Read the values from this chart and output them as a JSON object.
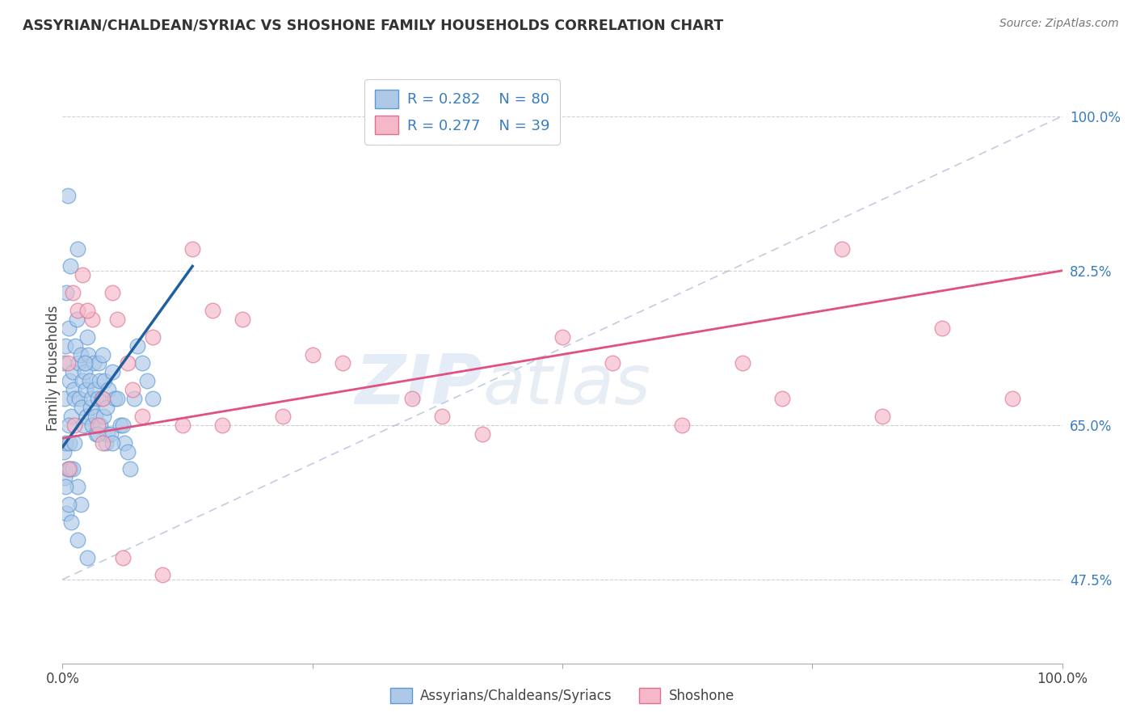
{
  "title": "ASSYRIAN/CHALDEAN/SYRIAC VS SHOSHONE FAMILY HOUSEHOLDS CORRELATION CHART",
  "source": "Source: ZipAtlas.com",
  "ylabel": "Family Households",
  "yticks": [
    0.475,
    0.65,
    0.825,
    1.0
  ],
  "ytick_labels": [
    "47.5%",
    "65.0%",
    "82.5%",
    "100.0%"
  ],
  "xlim": [
    0.0,
    1.0
  ],
  "ylim": [
    0.38,
    1.05
  ],
  "legend_r1": "R = 0.282",
  "legend_n1": "N = 80",
  "legend_r2": "R = 0.277",
  "legend_n2": "N = 39",
  "blue_fill": "#aec9e8",
  "blue_edge": "#5b9bd5",
  "pink_fill": "#f4b8c8",
  "pink_edge": "#e07090",
  "blue_line_color": "#2060a0",
  "pink_line_color": "#e05080",
  "ref_line_color": "#99aacc",
  "blue_scatter_x": [
    0.001,
    0.002,
    0.003,
    0.004,
    0.005,
    0.006,
    0.007,
    0.008,
    0.009,
    0.01,
    0.011,
    0.012,
    0.013,
    0.014,
    0.015,
    0.016,
    0.017,
    0.018,
    0.019,
    0.02,
    0.021,
    0.022,
    0.023,
    0.024,
    0.025,
    0.026,
    0.027,
    0.028,
    0.029,
    0.03,
    0.031,
    0.032,
    0.033,
    0.034,
    0.035,
    0.036,
    0.037,
    0.038,
    0.039,
    0.04,
    0.041,
    0.042,
    0.043,
    0.044,
    0.045,
    0.046,
    0.048,
    0.05,
    0.052,
    0.055,
    0.058,
    0.06,
    0.062,
    0.065,
    0.068,
    0.072,
    0.075,
    0.08,
    0.085,
    0.09,
    0.001,
    0.002,
    0.003,
    0.004,
    0.005,
    0.006,
    0.007,
    0.008,
    0.01,
    0.012,
    0.015,
    0.018,
    0.022,
    0.003,
    0.006,
    0.009,
    0.015,
    0.025,
    0.035,
    0.05
  ],
  "blue_scatter_y": [
    0.72,
    0.68,
    0.74,
    0.8,
    0.91,
    0.76,
    0.7,
    0.83,
    0.66,
    0.71,
    0.69,
    0.68,
    0.74,
    0.77,
    0.85,
    0.72,
    0.68,
    0.73,
    0.67,
    0.7,
    0.65,
    0.71,
    0.69,
    0.66,
    0.75,
    0.73,
    0.7,
    0.67,
    0.68,
    0.65,
    0.72,
    0.69,
    0.66,
    0.64,
    0.68,
    0.72,
    0.7,
    0.65,
    0.68,
    0.73,
    0.66,
    0.7,
    0.63,
    0.67,
    0.64,
    0.69,
    0.64,
    0.71,
    0.68,
    0.68,
    0.65,
    0.65,
    0.63,
    0.62,
    0.6,
    0.68,
    0.74,
    0.72,
    0.7,
    0.68,
    0.62,
    0.59,
    0.63,
    0.55,
    0.6,
    0.65,
    0.63,
    0.6,
    0.6,
    0.63,
    0.58,
    0.56,
    0.72,
    0.58,
    0.56,
    0.54,
    0.52,
    0.5,
    0.64,
    0.63
  ],
  "pink_scatter_x": [
    0.005,
    0.01,
    0.015,
    0.02,
    0.03,
    0.035,
    0.04,
    0.05,
    0.055,
    0.065,
    0.07,
    0.09,
    0.12,
    0.15,
    0.18,
    0.22,
    0.25,
    0.28,
    0.35,
    0.38,
    0.42,
    0.5,
    0.55,
    0.62,
    0.68,
    0.72,
    0.78,
    0.82,
    0.88,
    0.95,
    0.006,
    0.012,
    0.025,
    0.04,
    0.06,
    0.08,
    0.1,
    0.13,
    0.16
  ],
  "pink_scatter_y": [
    0.72,
    0.8,
    0.78,
    0.82,
    0.77,
    0.65,
    0.68,
    0.8,
    0.77,
    0.72,
    0.69,
    0.75,
    0.65,
    0.78,
    0.77,
    0.66,
    0.73,
    0.72,
    0.68,
    0.66,
    0.64,
    0.75,
    0.72,
    0.65,
    0.72,
    0.68,
    0.85,
    0.66,
    0.76,
    0.68,
    0.6,
    0.65,
    0.78,
    0.63,
    0.5,
    0.66,
    0.48,
    0.85,
    0.65
  ],
  "blue_trend_x": [
    0.0,
    0.13
  ],
  "blue_trend_y": [
    0.625,
    0.83
  ],
  "pink_trend_x": [
    0.0,
    1.0
  ],
  "pink_trend_y": [
    0.635,
    0.825
  ],
  "ref_line_x": [
    0.0,
    1.0
  ],
  "ref_line_y": [
    0.475,
    1.0
  ],
  "watermark_zip": "ZIP",
  "watermark_atlas": "atlas",
  "background_color": "#ffffff",
  "grid_color": "#cccccc"
}
